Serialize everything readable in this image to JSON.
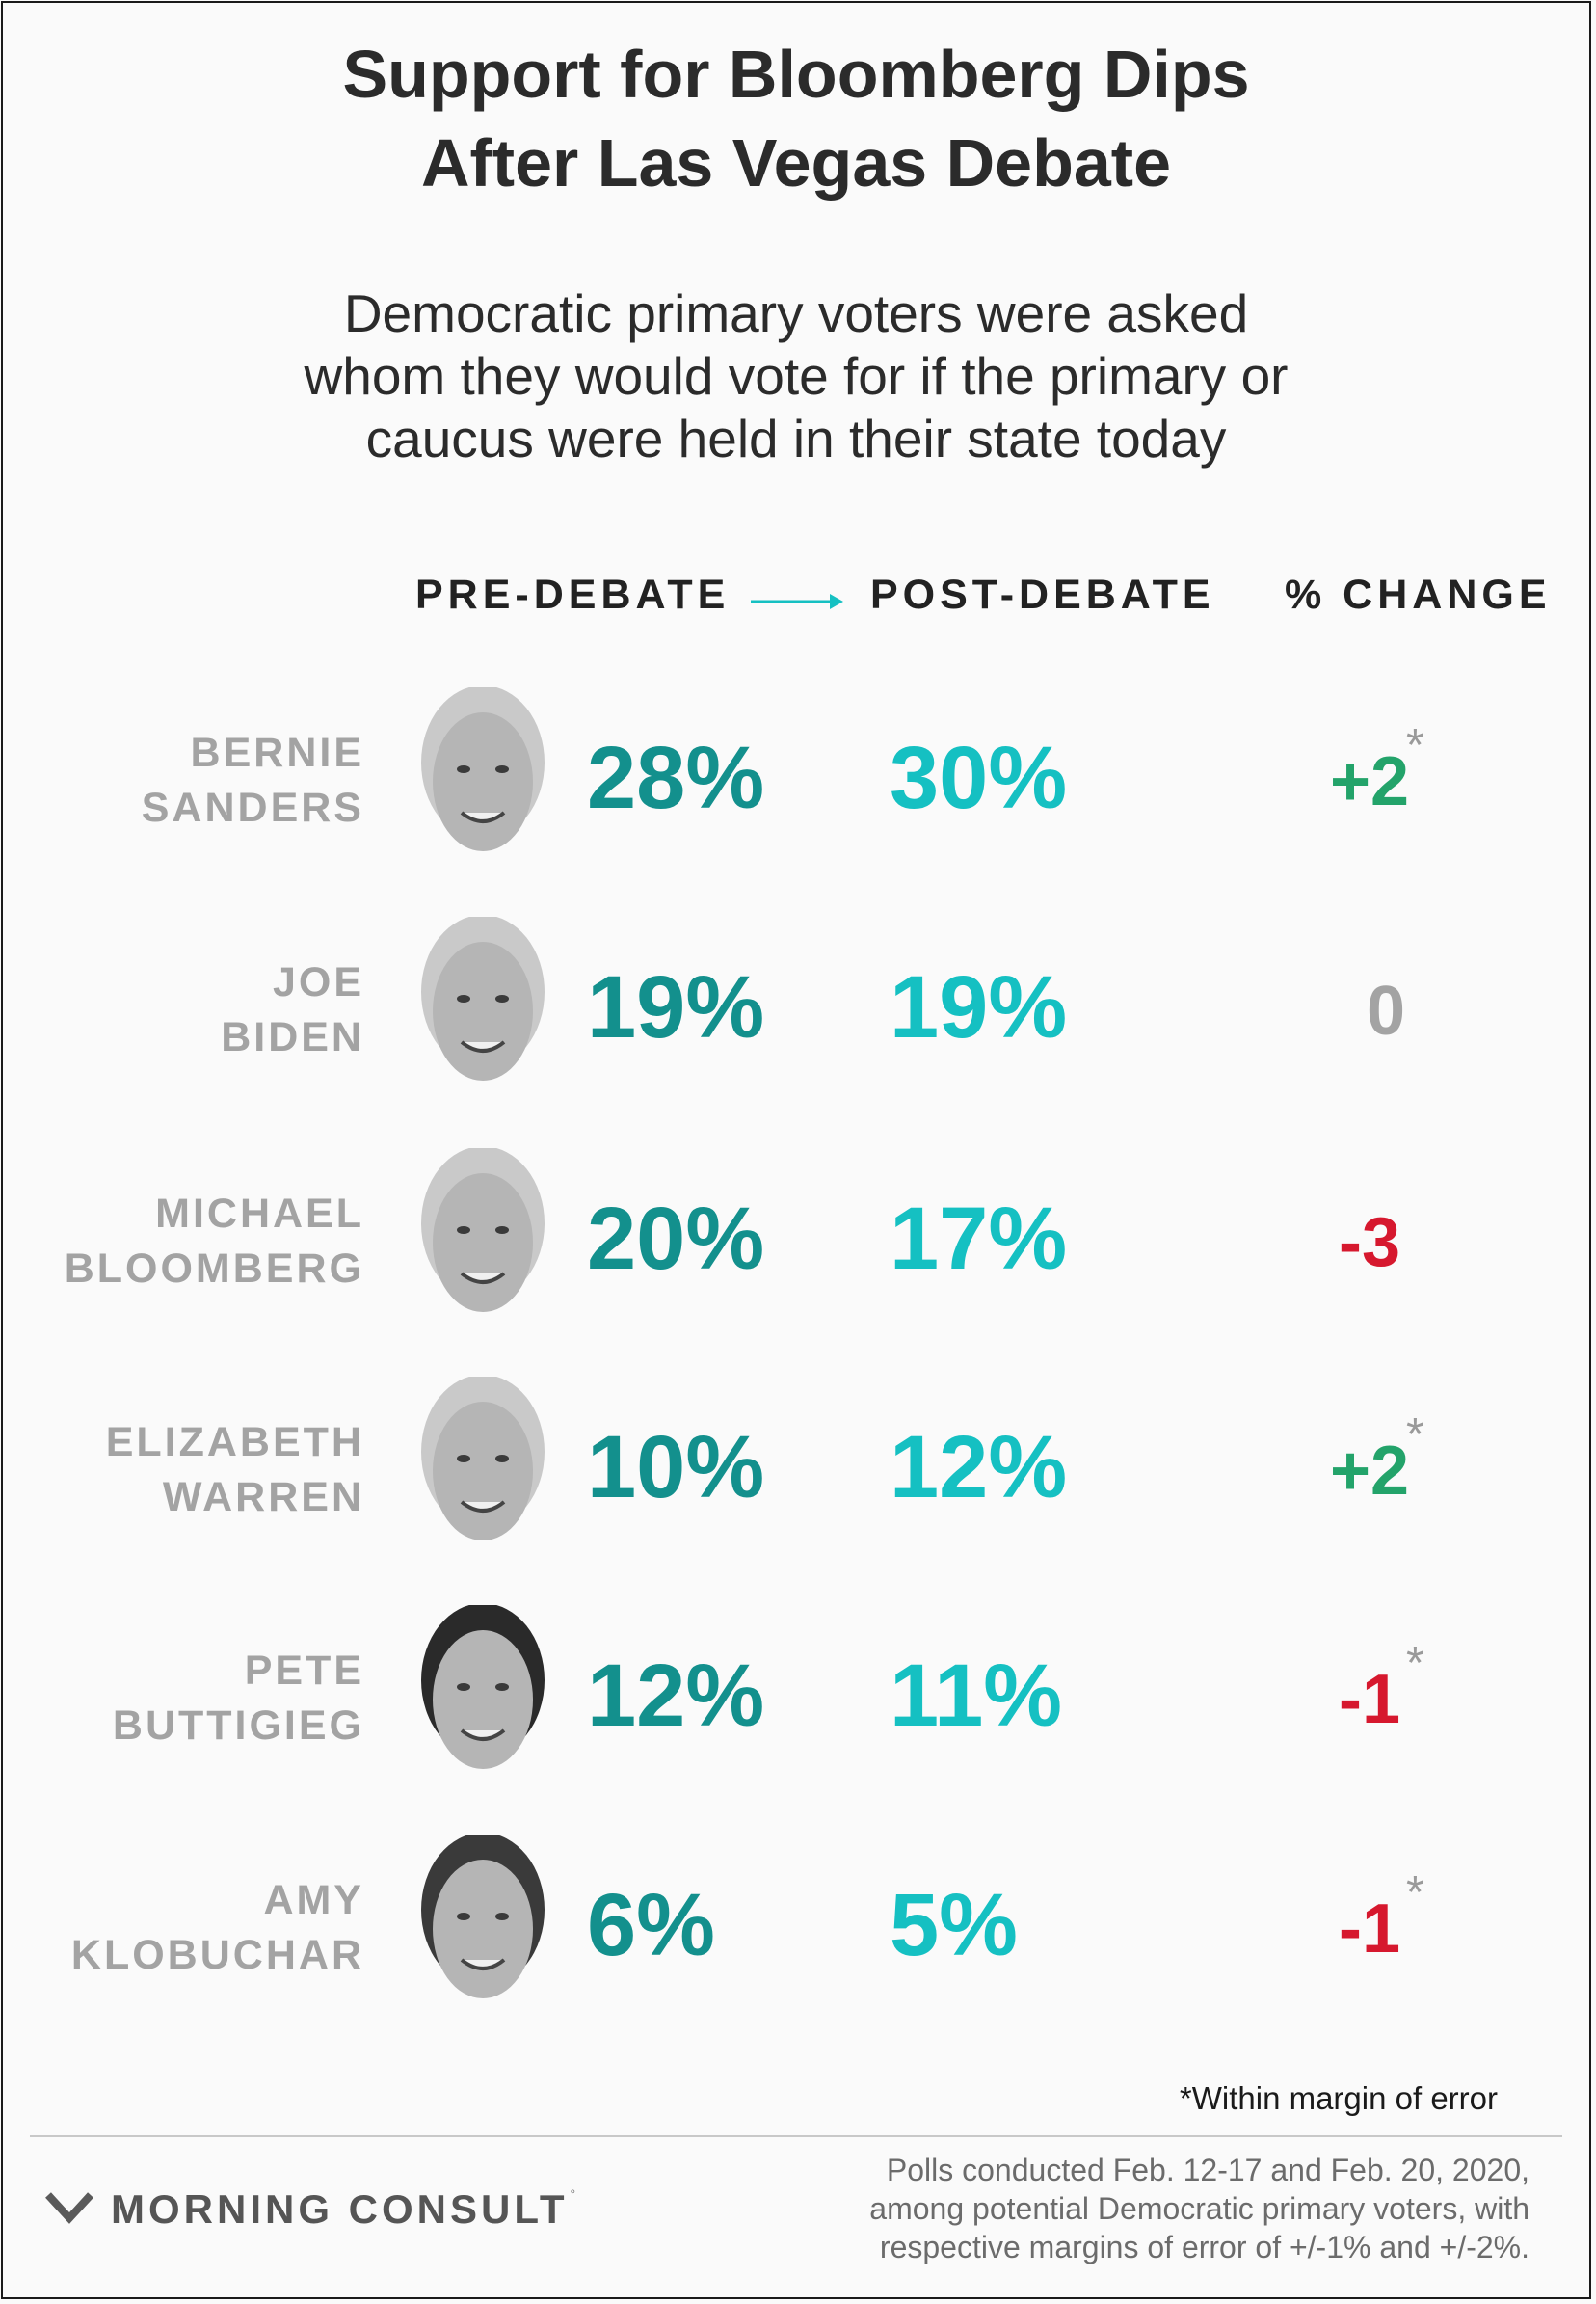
{
  "title_lines": [
    "Support for Bloomberg Dips",
    "After Las Vegas Debate"
  ],
  "subtitle_lines": [
    "Democratic primary voters were asked",
    "whom they would vote for if the primary or",
    "caucus were held in their state today"
  ],
  "headers": {
    "pre": "PRE-DEBATE",
    "post": "POST-DEBATE",
    "change": "% CHANGE"
  },
  "colors": {
    "pre": "#13908d",
    "post": "#15c0c2",
    "positive": "#23a36a",
    "negative": "#d6182e",
    "neutral": "#a3a3a3",
    "arrow": "#15c0c2"
  },
  "chart_data": {
    "type": "table",
    "columns": [
      "PRE-DEBATE",
      "POST-DEBATE",
      "% CHANGE"
    ],
    "rows": [
      {
        "name_lines": [
          "BERNIE",
          "SANDERS"
        ],
        "pre": "28%",
        "post": "30%",
        "change": "+2",
        "star": true,
        "sign": "positive",
        "pre_value": 28,
        "post_value": 30,
        "change_value": 2
      },
      {
        "name_lines": [
          "JOE",
          "BIDEN"
        ],
        "pre": "19%",
        "post": "19%",
        "change": "0",
        "star": false,
        "sign": "neutral",
        "pre_value": 19,
        "post_value": 19,
        "change_value": 0
      },
      {
        "name_lines": [
          "MICHAEL",
          "BLOOMBERG"
        ],
        "pre": "20%",
        "post": "17%",
        "change": "-3",
        "star": false,
        "sign": "negative",
        "pre_value": 20,
        "post_value": 17,
        "change_value": -3
      },
      {
        "name_lines": [
          "ELIZABETH",
          "WARREN"
        ],
        "pre": "10%",
        "post": "12%",
        "change": "+2",
        "star": true,
        "sign": "positive",
        "pre_value": 10,
        "post_value": 12,
        "change_value": 2
      },
      {
        "name_lines": [
          "PETE",
          "BUTTIGIEG"
        ],
        "pre": "12%",
        "post": "11%",
        "change": "-1",
        "star": true,
        "sign": "negative",
        "pre_value": 12,
        "post_value": 11,
        "change_value": -1
      },
      {
        "name_lines": [
          "AMY",
          "KLOBUCHAR"
        ],
        "pre": "6%",
        "post": "5%",
        "change": "-1",
        "star": true,
        "sign": "negative",
        "pre_value": 6,
        "post_value": 5,
        "change_value": -1
      }
    ]
  },
  "star_symbol": "*",
  "footnote": "*Within margin of error",
  "logo": {
    "text": "MORNING CONSULT",
    "tm": "°",
    "icon": "morning-consult-logo-icon"
  },
  "source_lines": [
    "Polls conducted Feb. 12-17 and Feb. 20, 2020,",
    "among potential Democratic primary voters, with",
    "respective margins of error of +/-1% and +/-2%."
  ]
}
